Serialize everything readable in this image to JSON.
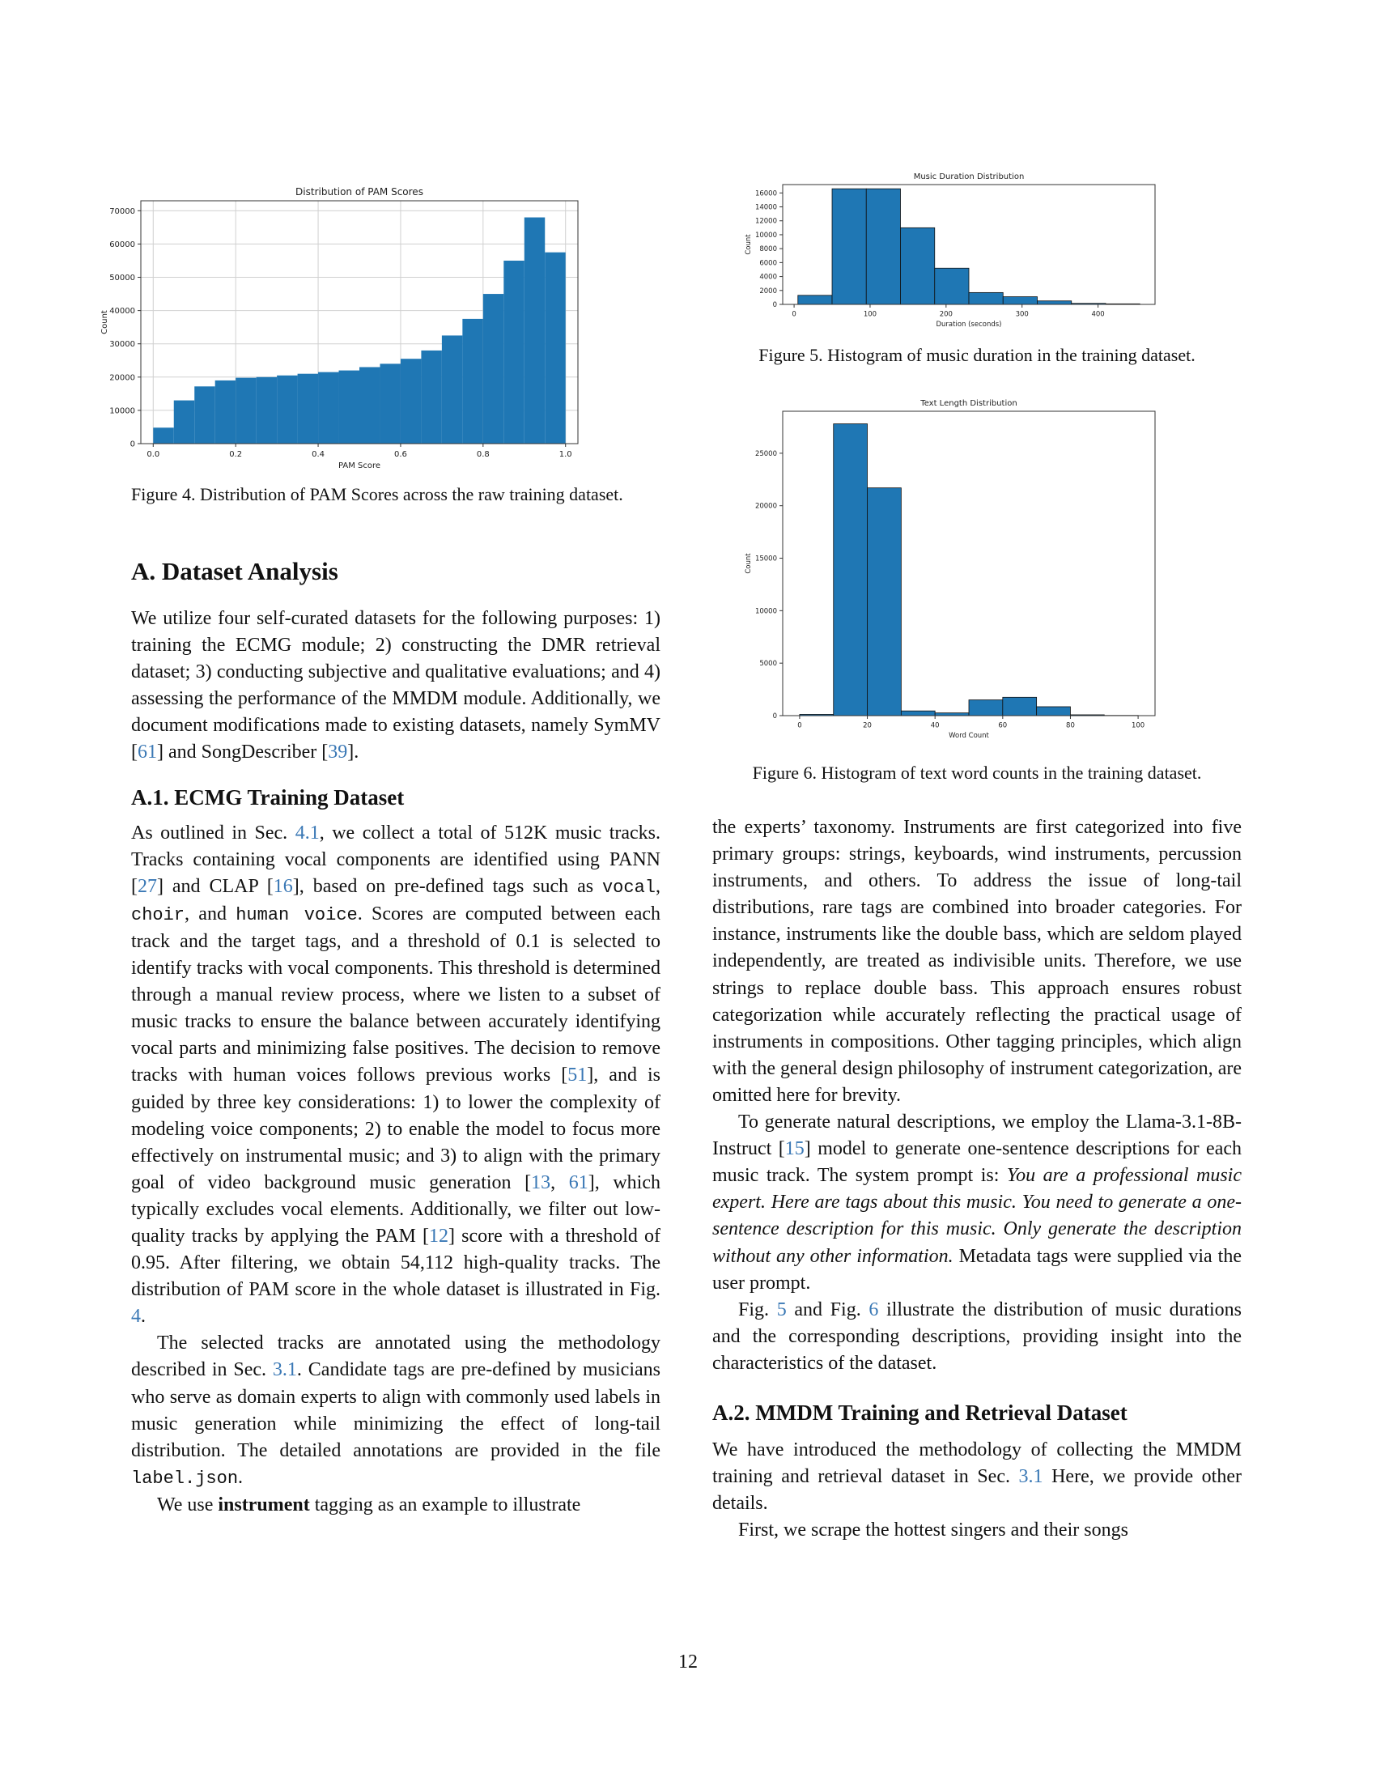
{
  "chart_data": [
    {
      "type": "bar",
      "title": "Distribution of PAM Scores",
      "xlabel": "PAM Score",
      "ylabel": "Count",
      "x_bin_edges": [
        0.0,
        0.05,
        0.1,
        0.15,
        0.2,
        0.25,
        0.3,
        0.35,
        0.4,
        0.45,
        0.5,
        0.55,
        0.6,
        0.65,
        0.7,
        0.75,
        0.8,
        0.85,
        0.9,
        0.95,
        1.0
      ],
      "values": [
        4800,
        13000,
        17200,
        19000,
        19800,
        20000,
        20500,
        21000,
        21500,
        22000,
        23000,
        24000,
        25500,
        28000,
        32500,
        37500,
        45000,
        55000,
        68000,
        57500
      ],
      "xlim": [
        -0.03,
        1.03
      ],
      "ylim": [
        0,
        73000
      ],
      "xticks": [
        "0.0",
        "0.2",
        "0.4",
        "0.6",
        "0.8",
        "1.0"
      ],
      "yticks": [
        "0",
        "10000",
        "20000",
        "30000",
        "40000",
        "50000",
        "60000",
        "70000"
      ],
      "grid": true,
      "color": "#1f77b4"
    },
    {
      "type": "bar",
      "title": "Music Duration Distribution",
      "xlabel": "Duration (seconds)",
      "ylabel": "Count",
      "x_bin_edges": [
        5,
        50,
        95,
        140,
        185,
        230,
        275,
        320,
        365,
        410,
        455
      ],
      "values": [
        1300,
        16600,
        16600,
        11000,
        5200,
        1700,
        1100,
        500,
        150,
        80
      ],
      "xlim": [
        -15,
        475
      ],
      "ylim": [
        0,
        17200
      ],
      "xticks": [
        "0",
        "100",
        "200",
        "300",
        "400"
      ],
      "yticks": [
        "0",
        "2000",
        "4000",
        "6000",
        "8000",
        "10000",
        "12000",
        "14000",
        "16000"
      ],
      "grid": false,
      "color": "#1f77b4"
    },
    {
      "type": "bar",
      "title": "Text Length Distribution",
      "xlabel": "Word Count",
      "ylabel": "Count",
      "x_bin_edges": [
        0,
        10,
        20,
        30,
        40,
        50,
        60,
        70,
        80,
        90,
        100
      ],
      "values": [
        120,
        27800,
        21700,
        450,
        260,
        1500,
        1750,
        850,
        80,
        20
      ],
      "xlim": [
        -5,
        105
      ],
      "ylim": [
        0,
        29000
      ],
      "xticks": [
        "0",
        "20",
        "40",
        "60",
        "80",
        "100"
      ],
      "yticks": [
        "0",
        "5000",
        "10000",
        "15000",
        "20000",
        "25000"
      ],
      "grid": false,
      "color": "#1f77b4"
    }
  ],
  "captions": {
    "fig4": "Figure 4.  Distribution of PAM Scores across the raw training dataset.",
    "fig5": "Figure 5. Histogram of music duration in the training dataset.",
    "fig6": "Figure 6. Histogram of text word counts in the training dataset."
  },
  "section_a": {
    "title": "A. Dataset Analysis",
    "p1": [
      "We utilize four self-curated datasets for the following purposes: 1) training the ECMG module; 2) constructing the DMR retrieval dataset; 3) conducting subjective and qualitative evaluations; and 4) assessing the performance of the MMDM module. Additionally, we document modifications made to existing datasets, namely SymMV [",
      "61",
      "] and SongDescriber [",
      "39",
      "]."
    ]
  },
  "section_a1": {
    "title": "A.1. ECMG Training Dataset",
    "p1": [
      "As outlined in Sec. ",
      "4.1",
      ", we collect a total of 512K music tracks. Tracks containing vocal components are identified using PANN [",
      "27",
      "] and CLAP [",
      "16",
      "], based on pre-defined tags such as ",
      "vocal",
      ", ",
      "choir",
      ", and ",
      "human voice",
      ". Scores are computed between each track and the target tags, and a threshold of 0.1 is selected to identify tracks with vocal components. This threshold is determined through a manual review process, where we listen to a subset of music tracks to ensure the balance between accurately identifying vocal parts and minimizing false positives. The decision to remove tracks with human voices follows previous works [",
      "51",
      "], and is guided by three key considerations: 1) to lower the complexity of modeling voice components; 2) to enable the model to focus more effectively on instrumental music; and 3) to align with the primary goal of video background music generation [",
      "13",
      ", ",
      "61",
      "], which typically excludes vocal elements. Additionally, we filter out low-quality tracks by applying the PAM [",
      "12",
      "] score with a threshold of 0.95. After filtering, we obtain 54,112 high-quality tracks. The distribution of PAM score in the whole dataset is illustrated in Fig. ",
      "4",
      "."
    ],
    "p2": [
      "The selected tracks are annotated using the methodology described in Sec. ",
      "3.1",
      ". Candidate tags are pre-defined by musicians who serve as domain experts to align with commonly used labels in music generation while minimizing the effect of long-tail distribution. The detailed annotations are provided in the file ",
      "label.json",
      "."
    ],
    "p3": [
      "We use ",
      "instrument",
      " tagging as an example to illustrate"
    ]
  },
  "right_col": {
    "p1": "the experts’ taxonomy. Instruments are first categorized into five primary groups: strings, keyboards, wind instruments, percussion instruments, and others. To address the issue of long-tail distributions, rare tags are combined into broader categories. For instance, instruments like the double bass, which are seldom played independently, are treated as indivisible units. Therefore, we use strings to replace double bass. This approach ensures robust categorization while accurately reflecting the practical usage of instruments in compositions. Other tagging principles, which align with the general design philosophy of instrument categorization, are omitted here for brevity.",
    "p2": [
      "To generate natural descriptions, we employ the Llama-3.1-8B-Instruct [",
      "15",
      "] model to generate one-sentence descriptions for each music track. The system prompt is: ",
      "You are a professional music expert. Here are tags about this music. You need to generate a one-sentence description for this music. Only generate the description without any other information.",
      " Metadata tags were supplied via the user prompt."
    ],
    "p3": [
      "Fig. ",
      "5",
      " and Fig. ",
      "6",
      " illustrate the distribution of music durations and the corresponding descriptions, providing insight into the characteristics of the dataset."
    ]
  },
  "section_a2": {
    "title": "A.2. MMDM Training and Retrieval Dataset",
    "p1": [
      "We have introduced the methodology of collecting the MMDM training and retrieval dataset in Sec. ",
      "3.1",
      " Here, we provide other details."
    ],
    "p2": "First, we scrape the hottest singers and their songs"
  },
  "page_number": "12"
}
